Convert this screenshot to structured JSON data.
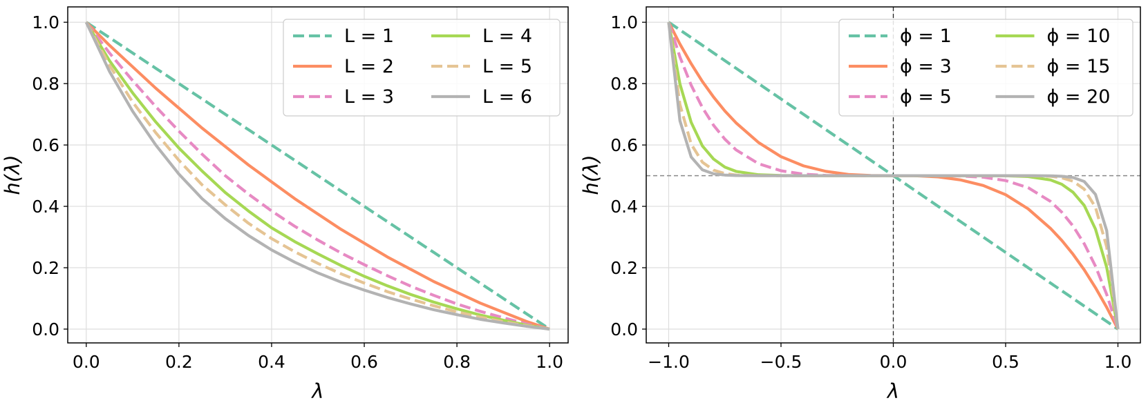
{
  "chart_data": [
    {
      "type": "line",
      "xlabel": "λ",
      "ylabel": "h(λ)",
      "xlim": [
        -0.04,
        1.04
      ],
      "ylim": [
        -0.045,
        1.05
      ],
      "xticks": [
        "0.0",
        "0.2",
        "0.4",
        "0.6",
        "0.8",
        "1.0"
      ],
      "yticks": [
        "0.0",
        "0.2",
        "0.4",
        "0.6",
        "0.8",
        "1.0"
      ],
      "xtick_values": [
        0,
        0.2,
        0.4,
        0.6,
        0.8,
        1.0
      ],
      "ytick_values": [
        0,
        0.2,
        0.4,
        0.6,
        0.8,
        1.0
      ],
      "grid": true,
      "legend_position": "top-right",
      "legend_columns": 2,
      "x": [
        0,
        0.05,
        0.1,
        0.15,
        0.2,
        0.25,
        0.3,
        0.35,
        0.4,
        0.45,
        0.5,
        0.55,
        0.6,
        0.65,
        0.7,
        0.75,
        0.8,
        0.85,
        0.9,
        0.95,
        1.0
      ],
      "series": [
        {
          "name": "L = 1",
          "color": "#66c2a5",
          "style": "dashed",
          "values": [
            1.0,
            0.95,
            0.9,
            0.85,
            0.8,
            0.75,
            0.7,
            0.65,
            0.6,
            0.55,
            0.5,
            0.45,
            0.4,
            0.35,
            0.3,
            0.25,
            0.2,
            0.15,
            0.1,
            0.05,
            0.0
          ]
        },
        {
          "name": "L = 2",
          "color": "#fc8d62",
          "style": "solid",
          "values": [
            1.0,
            0.925,
            0.855,
            0.785,
            0.72,
            0.655,
            0.595,
            0.535,
            0.48,
            0.425,
            0.375,
            0.325,
            0.28,
            0.235,
            0.195,
            0.155,
            0.12,
            0.085,
            0.055,
            0.025,
            0.0
          ]
        },
        {
          "name": "L = 3",
          "color": "#e78ac3",
          "style": "dashed",
          "values": [
            1.0,
            0.9,
            0.81,
            0.725,
            0.645,
            0.57,
            0.5,
            0.44,
            0.385,
            0.335,
            0.29,
            0.248,
            0.21,
            0.174,
            0.14,
            0.11,
            0.082,
            0.058,
            0.037,
            0.017,
            0.0
          ]
        },
        {
          "name": "L = 4",
          "color": "#a6d854",
          "style": "solid",
          "values": [
            1.0,
            0.875,
            0.77,
            0.675,
            0.59,
            0.515,
            0.445,
            0.385,
            0.33,
            0.285,
            0.245,
            0.207,
            0.172,
            0.141,
            0.113,
            0.088,
            0.066,
            0.046,
            0.029,
            0.013,
            0.0
          ]
        },
        {
          "name": "L = 5",
          "color": "#e5c494",
          "style": "dashed",
          "values": [
            1.0,
            0.86,
            0.74,
            0.64,
            0.55,
            0.47,
            0.405,
            0.345,
            0.295,
            0.252,
            0.214,
            0.18,
            0.15,
            0.122,
            0.098,
            0.076,
            0.056,
            0.039,
            0.024,
            0.011,
            0.0
          ]
        },
        {
          "name": "L = 6",
          "color": "#b3b3b3",
          "style": "solid",
          "values": [
            1.0,
            0.84,
            0.71,
            0.6,
            0.505,
            0.425,
            0.36,
            0.305,
            0.258,
            0.218,
            0.183,
            0.153,
            0.127,
            0.103,
            0.082,
            0.063,
            0.047,
            0.032,
            0.02,
            0.009,
            0.0
          ]
        }
      ]
    },
    {
      "type": "line",
      "xlabel": "λ",
      "ylabel": "h(λ)",
      "xlim": [
        -1.1,
        1.1
      ],
      "ylim": [
        -0.045,
        1.05
      ],
      "xticks": [
        "−1.0",
        "−0.5",
        "0.0",
        "0.5",
        "1.0"
      ],
      "yticks": [
        "0.0",
        "0.2",
        "0.4",
        "0.6",
        "0.8",
        "1.0"
      ],
      "xtick_values": [
        -1.0,
        -0.5,
        0,
        0.5,
        1.0
      ],
      "ytick_values": [
        0,
        0.2,
        0.4,
        0.6,
        0.8,
        1.0
      ],
      "grid": true,
      "reference_lines": {
        "horizontal_y": 0.5,
        "vertical_x": 0.0
      },
      "legend_position": "top-right",
      "legend_columns": 2,
      "x": [
        -1.0,
        -0.95,
        -0.9,
        -0.85,
        -0.8,
        -0.75,
        -0.7,
        -0.6,
        -0.5,
        -0.4,
        -0.3,
        -0.2,
        -0.1,
        0.0,
        0.1,
        0.2,
        0.3,
        0.4,
        0.5,
        0.6,
        0.7,
        0.75,
        0.8,
        0.85,
        0.9,
        0.95,
        1.0
      ],
      "series": [
        {
          "name": "ϕ = 1",
          "color": "#66c2a5",
          "style": "dashed",
          "values": [
            1.0,
            0.975,
            0.95,
            0.925,
            0.9,
            0.875,
            0.85,
            0.8,
            0.75,
            0.7,
            0.65,
            0.6,
            0.55,
            0.5,
            0.45,
            0.4,
            0.35,
            0.3,
            0.25,
            0.2,
            0.15,
            0.125,
            0.1,
            0.075,
            0.05,
            0.025,
            0.0
          ]
        },
        {
          "name": "ϕ = 3",
          "color": "#fc8d62",
          "style": "solid",
          "values": [
            1.0,
            0.929,
            0.865,
            0.807,
            0.756,
            0.711,
            0.672,
            0.608,
            0.562,
            0.532,
            0.514,
            0.504,
            0.5005,
            0.5,
            0.4995,
            0.496,
            0.486,
            0.468,
            0.438,
            0.392,
            0.328,
            0.289,
            0.244,
            0.193,
            0.135,
            0.071,
            0.0
          ]
        },
        {
          "name": "ϕ = 5",
          "color": "#e78ac3",
          "style": "dashed",
          "values": [
            1.0,
            0.887,
            0.795,
            0.722,
            0.664,
            0.619,
            0.584,
            0.539,
            0.516,
            0.505,
            0.501,
            0.5002,
            0.5,
            0.5,
            0.5,
            0.4998,
            0.499,
            0.495,
            0.484,
            0.461,
            0.416,
            0.381,
            0.336,
            0.278,
            0.205,
            0.113,
            0.0
          ]
        },
        {
          "name": "ϕ = 10",
          "color": "#a6d854",
          "style": "solid",
          "values": [
            1.0,
            0.799,
            0.674,
            0.597,
            0.554,
            0.528,
            0.514,
            0.503,
            0.5005,
            0.5,
            0.5,
            0.5,
            0.5,
            0.5,
            0.5,
            0.5,
            0.5,
            0.5,
            0.4995,
            0.497,
            0.486,
            0.472,
            0.446,
            0.403,
            0.326,
            0.201,
            0.0
          ]
        },
        {
          "name": "ϕ = 15",
          "color": "#e5c494",
          "style": "dashed",
          "values": [
            1.0,
            0.732,
            0.603,
            0.544,
            0.518,
            0.507,
            0.502,
            0.5002,
            0.5,
            0.5,
            0.5,
            0.5,
            0.5,
            0.5,
            0.5,
            0.5,
            0.5,
            0.5,
            0.5,
            0.4998,
            0.498,
            0.493,
            0.482,
            0.456,
            0.397,
            0.268,
            0.0
          ]
        },
        {
          "name": "ϕ = 20",
          "color": "#b3b3b3",
          "style": "solid",
          "values": [
            1.0,
            0.679,
            0.561,
            0.519,
            0.506,
            0.502,
            0.5005,
            0.5,
            0.5,
            0.5,
            0.5,
            0.5,
            0.5,
            0.5,
            0.5,
            0.5,
            0.5,
            0.5,
            0.5,
            0.5,
            0.4995,
            0.498,
            0.494,
            0.481,
            0.439,
            0.321,
            0.0
          ]
        }
      ]
    }
  ]
}
